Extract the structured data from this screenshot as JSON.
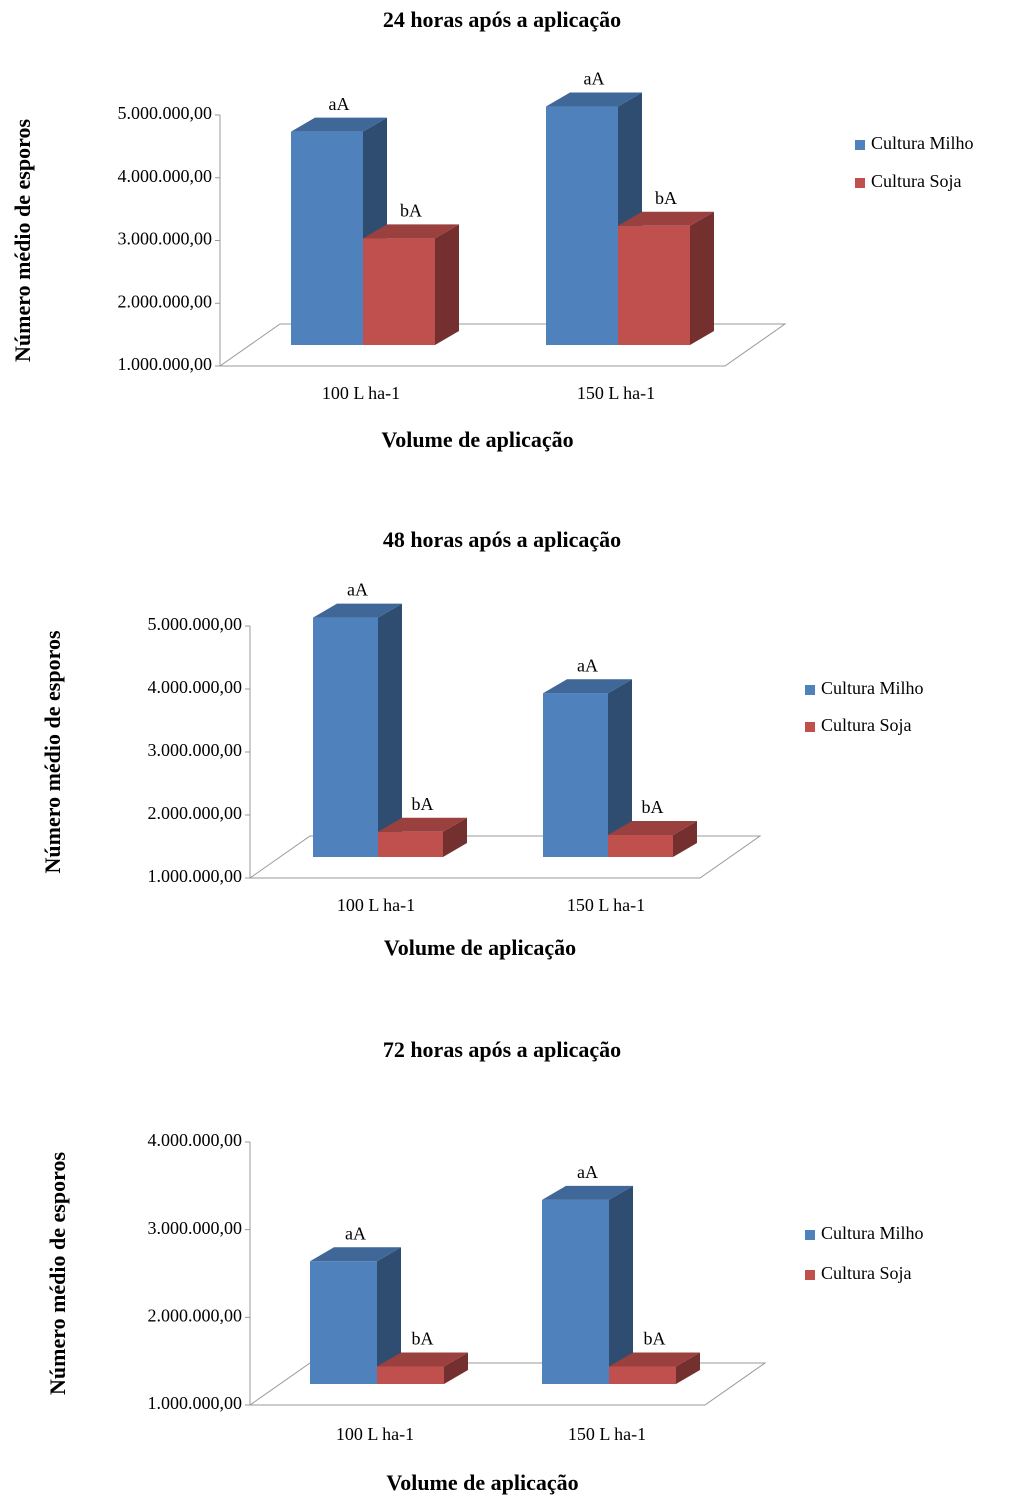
{
  "chart_data": [
    {
      "type": "bar3d",
      "title": "24 horas após a aplicação",
      "x_label": "Volume de aplicação",
      "y_label": "Número médio de esporos",
      "categories": [
        "100 L ha-1",
        "150 L ha-1"
      ],
      "series": [
        {
          "name": "Cultura Milho",
          "color": "#4f81bd",
          "values": [
            4400000,
            4800000
          ],
          "labels": [
            "aA",
            "aA"
          ]
        },
        {
          "name": "Cultura Soja",
          "color": "#c0504d",
          "values": [
            2700000,
            2900000
          ],
          "labels": [
            "bA",
            "bA"
          ]
        }
      ],
      "ylim": [
        1000000,
        5000000
      ],
      "yticks": [
        {
          "value": 1000000,
          "label": "1.000.000,00"
        },
        {
          "value": 2000000,
          "label": "2.000.000,00"
        },
        {
          "value": 3000000,
          "label": "3.000.000,00"
        },
        {
          "value": 4000000,
          "label": "4.000.000,00"
        },
        {
          "value": 5000000,
          "label": "5.000.000,00"
        }
      ],
      "legend": "right"
    },
    {
      "type": "bar3d",
      "title": "48 horas após a aplicação",
      "x_label": "Volume de aplicação",
      "y_label": "Número médio de esporos",
      "categories": [
        "100 L ha-1",
        "150 L ha-1"
      ],
      "series": [
        {
          "name": "Cultura Milho",
          "color": "#4f81bd",
          "values": [
            4800000,
            3600000
          ],
          "labels": [
            "aA",
            "aA"
          ]
        },
        {
          "name": "Cultura Soja",
          "color": "#c0504d",
          "values": [
            1400000,
            1350000
          ],
          "labels": [
            "bA",
            "bA"
          ]
        }
      ],
      "ylim": [
        1000000,
        5000000
      ],
      "yticks": [
        {
          "value": 1000000,
          "label": "1.000.000,00"
        },
        {
          "value": 2000000,
          "label": "2.000.000,00"
        },
        {
          "value": 3000000,
          "label": "3.000.000,00"
        },
        {
          "value": 4000000,
          "label": "4.000.000,00"
        },
        {
          "value": 5000000,
          "label": "5.000.000,00"
        }
      ],
      "legend": "right"
    },
    {
      "type": "bar3d",
      "title": "72 horas após a aplicação",
      "x_label": "Volume de aplicação",
      "y_label": "Número médio de esporos",
      "categories": [
        "100 L ha-1",
        "150 L ha-1"
      ],
      "series": [
        {
          "name": "Cultura Milho",
          "color": "#4f81bd",
          "values": [
            2400000,
            3100000
          ],
          "labels": [
            "aA",
            "aA"
          ]
        },
        {
          "name": "Cultura Soja",
          "color": "#c0504d",
          "values": [
            1200000,
            1200000
          ],
          "labels": [
            "bA",
            "bA"
          ]
        }
      ],
      "ylim": [
        1000000,
        4000000
      ],
      "yticks": [
        {
          "value": 1000000,
          "label": "1.000.000,00"
        },
        {
          "value": 2000000,
          "label": "2.000.000,00"
        },
        {
          "value": 3000000,
          "label": "3.000.000,00"
        },
        {
          "value": 4000000,
          "label": "4.000.000,00"
        }
      ],
      "legend": "right"
    }
  ]
}
